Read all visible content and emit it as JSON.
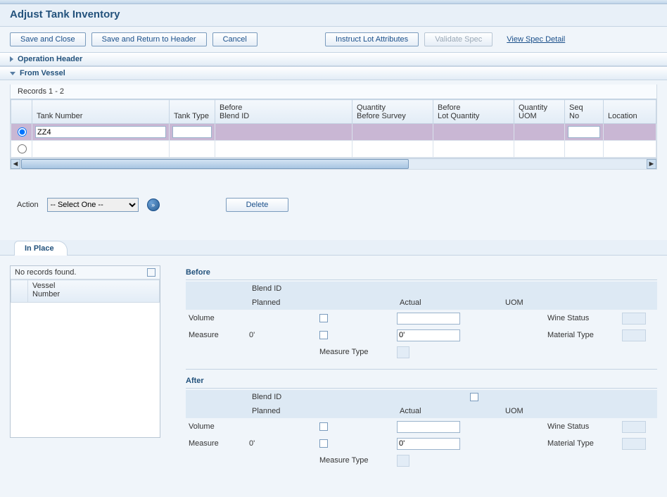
{
  "page": {
    "title": "Adjust Tank Inventory"
  },
  "toolbar": {
    "save_close": "Save and Close",
    "save_return": "Save and Return to Header",
    "cancel": "Cancel",
    "instruct": "Instruct Lot Attributes",
    "validate": "Validate Spec",
    "view_spec": "View Spec Detail"
  },
  "sections": {
    "op_header": "Operation Header",
    "from_vessel": "From Vessel"
  },
  "grid": {
    "records_label": "Records 1 - 2",
    "columns": {
      "tank_number": "Tank Number",
      "tank_type": "Tank Type",
      "before_blend": "Before\nBlend ID",
      "qty_before": "Quantity\nBefore Survey",
      "before_lot": "Before\nLot Quantity",
      "qty_uom": "Quantity\nUOM",
      "seq_no": "Seq\nNo",
      "location": "Location"
    },
    "rows": [
      {
        "tank_number": "ZZ4",
        "tank_type": "",
        "selected": true
      },
      {
        "tank_number": "",
        "tank_type": "",
        "selected": false
      }
    ]
  },
  "action": {
    "label": "Action",
    "select_placeholder": "-- Select One --",
    "delete_btn": "Delete"
  },
  "tabs": {
    "in_place": "In Place"
  },
  "mini": {
    "no_records": "No records found.",
    "col_vessel": "Vessel\nNumber"
  },
  "detail": {
    "before": "Before",
    "after": "After",
    "blend_id": "Blend ID",
    "planned": "Planned",
    "actual": "Actual",
    "uom": "UOM",
    "volume": "Volume",
    "measure": "Measure",
    "measure_type": "Measure Type",
    "wine_status": "Wine Status",
    "material_type": "Material Type",
    "zero_ft": "0'"
  },
  "colors": {
    "heading": "#23527c",
    "border": "#c5d4e3",
    "selected_row": "#c9b7d4"
  }
}
